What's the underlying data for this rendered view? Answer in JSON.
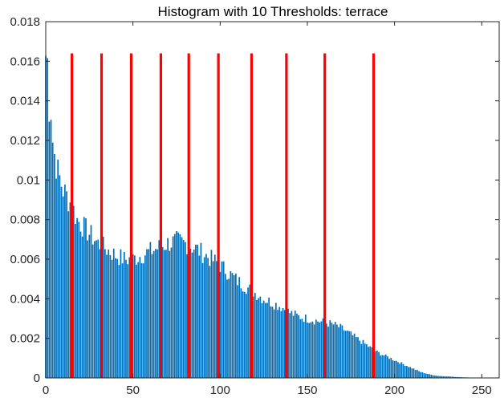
{
  "chart_data": {
    "type": "bar",
    "title": "Histogram with 10 Thresholds: terrace",
    "xlabel": "",
    "ylabel": "",
    "xlim": [
      0,
      260
    ],
    "ylim": [
      0,
      0.018
    ],
    "x_ticks": [
      0,
      50,
      100,
      150,
      200,
      250
    ],
    "y_ticks": [
      0,
      0.002,
      0.004,
      0.006,
      0.008,
      0.01,
      0.012,
      0.014,
      0.016,
      0.018
    ],
    "x_tick_labels": [
      "0",
      "50",
      "100",
      "150",
      "200",
      "250"
    ],
    "y_tick_labels": [
      "0",
      "0.002",
      "0.004",
      "0.006",
      "0.008",
      "0.01",
      "0.012",
      "0.014",
      "0.016",
      "0.018"
    ],
    "grid": false,
    "bar_color": "#0072BD",
    "threshold_color": "#FF0000",
    "thresholds": [
      15,
      32,
      49,
      66,
      82,
      99,
      118,
      138,
      160,
      188
    ],
    "threshold_height": 0.0164,
    "control_points": [
      [
        0,
        0.0163
      ],
      [
        1,
        0.016
      ],
      [
        2,
        0.0138
      ],
      [
        3,
        0.0136
      ],
      [
        4,
        0.012
      ],
      [
        5,
        0.0113
      ],
      [
        6,
        0.0108
      ],
      [
        7,
        0.0104
      ],
      [
        8,
        0.0101
      ],
      [
        9,
        0.0098
      ],
      [
        10,
        0.0095
      ],
      [
        12,
        0.0092
      ],
      [
        15,
        0.0087
      ],
      [
        18,
        0.008
      ],
      [
        22,
        0.0076
      ],
      [
        26,
        0.0072
      ],
      [
        30,
        0.0068
      ],
      [
        35,
        0.0065
      ],
      [
        40,
        0.0062
      ],
      [
        45,
        0.006
      ],
      [
        50,
        0.006
      ],
      [
        55,
        0.0062
      ],
      [
        60,
        0.0064
      ],
      [
        65,
        0.0066
      ],
      [
        70,
        0.0068
      ],
      [
        75,
        0.0069
      ],
      [
        80,
        0.0068
      ],
      [
        85,
        0.0066
      ],
      [
        90,
        0.0063
      ],
      [
        95,
        0.006
      ],
      [
        100,
        0.0057
      ],
      [
        105,
        0.0053
      ],
      [
        110,
        0.0049
      ],
      [
        115,
        0.0046
      ],
      [
        120,
        0.0043
      ],
      [
        125,
        0.004
      ],
      [
        130,
        0.0038
      ],
      [
        135,
        0.0036
      ],
      [
        140,
        0.0033
      ],
      [
        145,
        0.0031
      ],
      [
        150,
        0.003
      ],
      [
        155,
        0.0029
      ],
      [
        160,
        0.0028
      ],
      [
        165,
        0.0027
      ],
      [
        170,
        0.0025
      ],
      [
        175,
        0.0022
      ],
      [
        180,
        0.0019
      ],
      [
        185,
        0.0016
      ],
      [
        190,
        0.0013
      ],
      [
        195,
        0.0011
      ],
      [
        200,
        0.0009
      ],
      [
        205,
        0.0007
      ],
      [
        210,
        0.0005
      ],
      [
        215,
        0.0003
      ],
      [
        220,
        0.00018
      ],
      [
        225,
        0.0001
      ],
      [
        230,
        8e-05
      ],
      [
        235,
        5e-05
      ],
      [
        240,
        3e-05
      ],
      [
        245,
        1e-05
      ],
      [
        255,
        0
      ]
    ]
  }
}
